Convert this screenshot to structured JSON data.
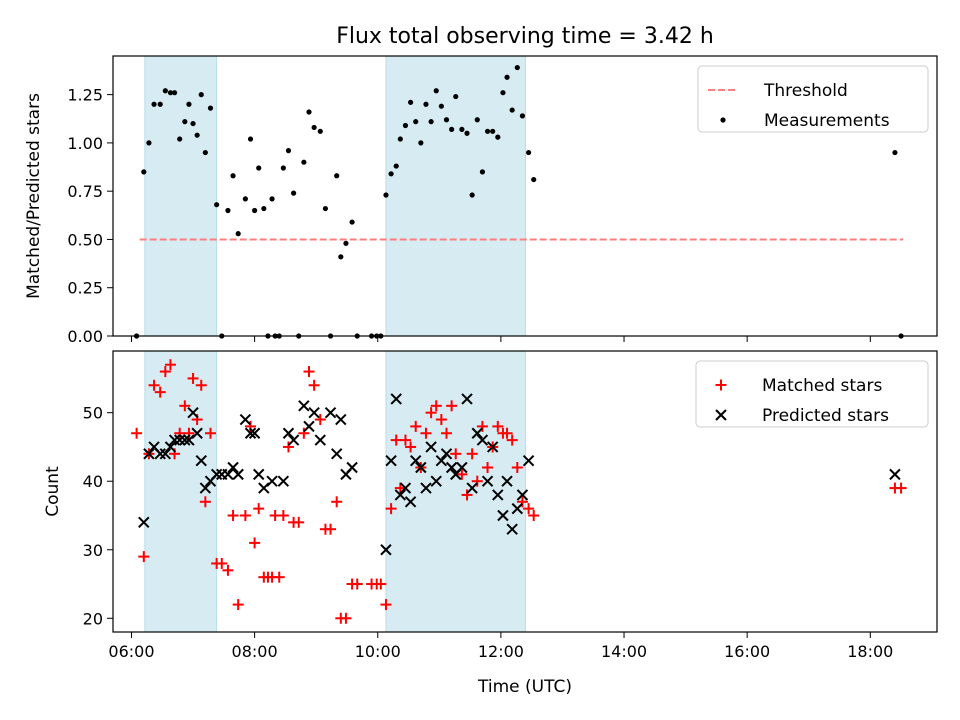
{
  "figure": {
    "title": "Flux total observing time = 3.42 h"
  },
  "chart_data": [
    {
      "type": "scatter",
      "panel": "top",
      "ylabel": "Matched/Predicted stars",
      "xlim": [
        "05:42",
        "19:05"
      ],
      "ylim": [
        0,
        1.45
      ],
      "y_ticks": [
        0,
        0.25,
        0.5,
        0.75,
        1.0,
        1.25
      ],
      "y_tick_labels": [
        "0.00",
        "0.25",
        "0.50",
        "0.75",
        "1.00",
        "1.25"
      ],
      "shaded_intervals": [
        [
          "06:13",
          "07:23"
        ],
        [
          "10:08",
          "12:24"
        ]
      ],
      "shade_color": "#add8e6",
      "legend": {
        "position": "top-right",
        "entries": [
          {
            "label": "Threshold",
            "marker": "dashed-line",
            "color": "#ff7f7f"
          },
          {
            "label": "Measurements",
            "marker": "dot",
            "color": "#000000"
          }
        ]
      },
      "threshold": {
        "name": "Threshold",
        "y": 0.5,
        "x": [
          "06:08",
          "18:32"
        ],
        "color": "#ff7f7f"
      },
      "series": [
        {
          "name": "Measurements",
          "color": "#000000",
          "points": [
            [
              "06:05",
              0
            ],
            [
              "06:12",
              0.85
            ],
            [
              "06:17",
              1.0
            ],
            [
              "06:22",
              1.2
            ],
            [
              "06:28",
              1.2
            ],
            [
              "06:33",
              1.27
            ],
            [
              "06:38",
              1.26
            ],
            [
              "06:42",
              1.26
            ],
            [
              "06:47",
              1.02
            ],
            [
              "06:52",
              1.11
            ],
            [
              "06:56",
              1.2
            ],
            [
              "07:00",
              1.1
            ],
            [
              "07:04",
              1.04
            ],
            [
              "07:08",
              1.25
            ],
            [
              "07:12",
              0.95
            ],
            [
              "07:17",
              1.18
            ],
            [
              "07:23",
              0.68
            ],
            [
              "07:28",
              0
            ],
            [
              "07:34",
              0.65
            ],
            [
              "07:39",
              0.83
            ],
            [
              "07:44",
              0.53
            ],
            [
              "07:51",
              0.71
            ],
            [
              "07:56",
              1.02
            ],
            [
              "08:00",
              0.65
            ],
            [
              "08:04",
              0.87
            ],
            [
              "08:09",
              0.66
            ],
            [
              "08:13",
              0
            ],
            [
              "08:17",
              0.71
            ],
            [
              "08:20",
              0
            ],
            [
              "08:24",
              0
            ],
            [
              "08:28",
              0.87
            ],
            [
              "08:33",
              0.96
            ],
            [
              "08:38",
              0.74
            ],
            [
              "08:43",
              0
            ],
            [
              "08:48",
              0.9
            ],
            [
              "08:53",
              1.16
            ],
            [
              "08:58",
              1.08
            ],
            [
              "09:04",
              1.06
            ],
            [
              "09:09",
              0.66
            ],
            [
              "09:14",
              0
            ],
            [
              "09:20",
              0.83
            ],
            [
              "09:24",
              0.41
            ],
            [
              "09:29",
              0.48
            ],
            [
              "09:35",
              0.59
            ],
            [
              "09:40",
              0
            ],
            [
              "09:54",
              0
            ],
            [
              "09:59",
              0
            ],
            [
              "10:03",
              0
            ],
            [
              "10:08",
              0.73
            ],
            [
              "10:13",
              0.84
            ],
            [
              "10:18",
              0.88
            ],
            [
              "10:22",
              1.02
            ],
            [
              "10:27",
              1.09
            ],
            [
              "10:32",
              1.21
            ],
            [
              "10:37",
              1.11
            ],
            [
              "10:42",
              1.0
            ],
            [
              "10:47",
              1.2
            ],
            [
              "10:52",
              1.11
            ],
            [
              "10:57",
              1.27
            ],
            [
              "11:02",
              1.19
            ],
            [
              "11:07",
              1.12
            ],
            [
              "11:12",
              1.07
            ],
            [
              "11:16",
              1.24
            ],
            [
              "11:22",
              1.07
            ],
            [
              "11:27",
              1.05
            ],
            [
              "11:32",
              0.73
            ],
            [
              "11:37",
              1.12
            ],
            [
              "11:42",
              0.85
            ],
            [
              "11:47",
              1.06
            ],
            [
              "11:52",
              1.06
            ],
            [
              "11:57",
              1.03
            ],
            [
              "12:02",
              1.26
            ],
            [
              "12:06",
              1.34
            ],
            [
              "12:11",
              1.17
            ],
            [
              "12:16",
              1.39
            ],
            [
              "12:21",
              1.14
            ],
            [
              "12:27",
              0.95
            ],
            [
              "12:32",
              0.81
            ],
            [
              "18:24",
              0.95
            ],
            [
              "18:30",
              0
            ]
          ]
        }
      ]
    },
    {
      "type": "scatter",
      "panel": "bottom",
      "xlabel": "Time (UTC)",
      "ylabel": "Count",
      "xlim": [
        "05:42",
        "19:05"
      ],
      "ylim": [
        18,
        59
      ],
      "x_tick_labels": [
        "06:00",
        "08:00",
        "10:00",
        "12:00",
        "14:00",
        "16:00",
        "18:00"
      ],
      "y_tick_labels": [
        "20",
        "30",
        "40",
        "50"
      ],
      "shaded_intervals": [
        [
          "06:13",
          "07:23"
        ],
        [
          "10:08",
          "12:24"
        ]
      ],
      "shade_color": "#add8e6",
      "legend": {
        "position": "top-right",
        "entries": [
          {
            "label": "Matched stars",
            "marker": "plus",
            "color": "#ff0000"
          },
          {
            "label": "Predicted stars",
            "marker": "x",
            "color": "#000000"
          }
        ]
      },
      "series": [
        {
          "name": "Matched stars",
          "marker": "plus",
          "color": "#ff0000",
          "points": [
            [
              "06:05",
              47
            ],
            [
              "06:12",
              29
            ],
            [
              "06:17",
              44
            ],
            [
              "06:22",
              54
            ],
            [
              "06:28",
              53
            ],
            [
              "06:33",
              56
            ],
            [
              "06:38",
              57
            ],
            [
              "06:42",
              44
            ],
            [
              "06:47",
              47
            ],
            [
              "06:52",
              51
            ],
            [
              "06:56",
              47
            ],
            [
              "07:00",
              55
            ],
            [
              "07:04",
              49
            ],
            [
              "07:08",
              54
            ],
            [
              "07:12",
              37
            ],
            [
              "07:17",
              47
            ],
            [
              "07:23",
              28
            ],
            [
              "07:28",
              28
            ],
            [
              "07:34",
              27
            ],
            [
              "07:39",
              35
            ],
            [
              "07:44",
              22
            ],
            [
              "07:51",
              35
            ],
            [
              "07:56",
              48
            ],
            [
              "08:00",
              31
            ],
            [
              "08:04",
              36
            ],
            [
              "08:09",
              26
            ],
            [
              "08:13",
              26
            ],
            [
              "08:17",
              26
            ],
            [
              "08:20",
              35
            ],
            [
              "08:24",
              26
            ],
            [
              "08:28",
              35
            ],
            [
              "08:33",
              45
            ],
            [
              "08:38",
              34
            ],
            [
              "08:43",
              34
            ],
            [
              "08:48",
              47
            ],
            [
              "08:53",
              56
            ],
            [
              "08:58",
              54
            ],
            [
              "09:04",
              49
            ],
            [
              "09:09",
              33
            ],
            [
              "09:14",
              33
            ],
            [
              "09:20",
              37
            ],
            [
              "09:24",
              20
            ],
            [
              "09:29",
              20
            ],
            [
              "09:35",
              25
            ],
            [
              "09:40",
              25
            ],
            [
              "09:54",
              25
            ],
            [
              "09:59",
              25
            ],
            [
              "10:03",
              25
            ],
            [
              "10:08",
              22
            ],
            [
              "10:13",
              36
            ],
            [
              "10:18",
              46
            ],
            [
              "10:22",
              39
            ],
            [
              "10:27",
              46
            ],
            [
              "10:32",
              45
            ],
            [
              "10:37",
              48
            ],
            [
              "10:42",
              42
            ],
            [
              "10:47",
              47
            ],
            [
              "10:52",
              50
            ],
            [
              "10:57",
              51
            ],
            [
              "11:02",
              49
            ],
            [
              "11:07",
              47
            ],
            [
              "11:12",
              51
            ],
            [
              "11:16",
              44
            ],
            [
              "11:22",
              41
            ],
            [
              "11:27",
              38
            ],
            [
              "11:32",
              44
            ],
            [
              "11:37",
              40
            ],
            [
              "11:42",
              48
            ],
            [
              "11:47",
              42
            ],
            [
              "11:52",
              45
            ],
            [
              "11:57",
              48
            ],
            [
              "12:02",
              47
            ],
            [
              "12:06",
              47
            ],
            [
              "12:11",
              46
            ],
            [
              "12:16",
              42
            ],
            [
              "12:21",
              37
            ],
            [
              "12:27",
              36
            ],
            [
              "12:32",
              35
            ],
            [
              "18:24",
              39
            ],
            [
              "18:30",
              39
            ]
          ]
        },
        {
          "name": "Predicted stars",
          "marker": "x",
          "color": "#000000",
          "points": [
            [
              "06:12",
              34
            ],
            [
              "06:17",
              44
            ],
            [
              "06:22",
              45
            ],
            [
              "06:28",
              44
            ],
            [
              "06:33",
              44
            ],
            [
              "06:38",
              45
            ],
            [
              "06:42",
              46
            ],
            [
              "06:47",
              46
            ],
            [
              "06:52",
              46
            ],
            [
              "06:56",
              46
            ],
            [
              "07:00",
              50
            ],
            [
              "07:04",
              47
            ],
            [
              "07:08",
              43
            ],
            [
              "07:12",
              39
            ],
            [
              "07:17",
              40
            ],
            [
              "07:23",
              41
            ],
            [
              "07:28",
              41
            ],
            [
              "07:34",
              41
            ],
            [
              "07:39",
              42
            ],
            [
              "07:44",
              41
            ],
            [
              "07:51",
              49
            ],
            [
              "07:56",
              47
            ],
            [
              "08:00",
              47
            ],
            [
              "08:04",
              41
            ],
            [
              "08:09",
              39
            ],
            [
              "08:17",
              40
            ],
            [
              "08:28",
              40
            ],
            [
              "08:33",
              47
            ],
            [
              "08:38",
              46
            ],
            [
              "08:48",
              51
            ],
            [
              "08:53",
              48
            ],
            [
              "08:58",
              50
            ],
            [
              "09:04",
              46
            ],
            [
              "09:14",
              50
            ],
            [
              "09:20",
              44
            ],
            [
              "09:24",
              49
            ],
            [
              "09:29",
              41
            ],
            [
              "09:35",
              42
            ],
            [
              "10:08",
              30
            ],
            [
              "10:13",
              43
            ],
            [
              "10:18",
              52
            ],
            [
              "10:22",
              38
            ],
            [
              "10:27",
              39
            ],
            [
              "10:32",
              37
            ],
            [
              "10:37",
              43
            ],
            [
              "10:42",
              42
            ],
            [
              "10:47",
              39
            ],
            [
              "10:52",
              45
            ],
            [
              "10:57",
              40
            ],
            [
              "11:02",
              43
            ],
            [
              "11:07",
              44
            ],
            [
              "11:12",
              42
            ],
            [
              "11:16",
              41
            ],
            [
              "11:22",
              42
            ],
            [
              "11:27",
              52
            ],
            [
              "11:32",
              39
            ],
            [
              "11:37",
              47
            ],
            [
              "11:42",
              46
            ],
            [
              "11:47",
              40
            ],
            [
              "11:52",
              45
            ],
            [
              "11:57",
              38
            ],
            [
              "12:02",
              35
            ],
            [
              "12:06",
              40
            ],
            [
              "12:11",
              33
            ],
            [
              "12:16",
              36
            ],
            [
              "12:21",
              38
            ],
            [
              "12:27",
              43
            ],
            [
              "18:24",
              41
            ]
          ]
        }
      ]
    }
  ]
}
